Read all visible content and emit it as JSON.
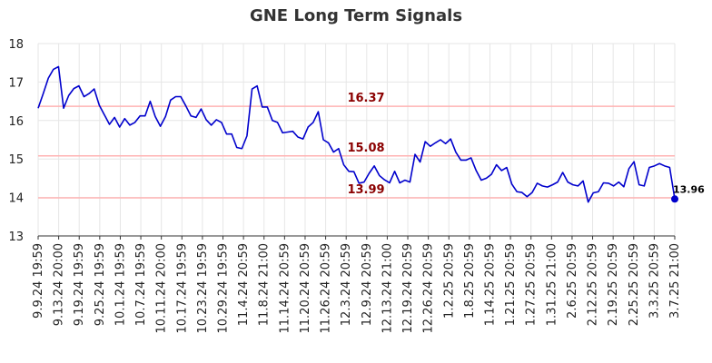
{
  "chart_data": {
    "type": "line",
    "title": "GNE Long Term Signals",
    "ylim": [
      13,
      18
    ],
    "yticks": [
      13,
      14,
      15,
      16,
      17,
      18
    ],
    "grid": true,
    "line_color": "#0000cc",
    "level_line_color": "#ffb3b3",
    "level_label_color": "#8b0000",
    "x_tick_labels": [
      "9.9.24 19:59",
      "9.13.24 20:00",
      "9.19.24 19:59",
      "9.25.24 19:59",
      "10.1.24 19:59",
      "10.7.24 19:59",
      "10.11.24 20:00",
      "10.17.24 19:59",
      "10.23.24 19:59",
      "10.29.24 19:59",
      "11.4.24 20:59",
      "11.8.24 21:00",
      "11.14.24 20:59",
      "11.20.24 20:59",
      "11.26.24 20:59",
      "12.3.24 20:59",
      "12.9.24 20:59",
      "12.13.24 21:00",
      "12.19.24 20:59",
      "12.26.24 20:59",
      "1.2.25 20:59",
      "1.8.25 20:59",
      "1.14.25 20:59",
      "1.21.25 20:59",
      "1.27.25 20:59",
      "1.31.25 21:00",
      "2.6.25 20:59",
      "2.12.25 20:59",
      "2.19.25 20:59",
      "2.25.25 20:59",
      "3.3.25 20:59",
      "3.7.25 21:00"
    ],
    "levels": [
      {
        "value": 16.37,
        "label": "16.37"
      },
      {
        "value": 15.08,
        "label": "15.08"
      },
      {
        "value": 13.99,
        "label": "13.99"
      }
    ],
    "last_value": 13.96,
    "last_label": "13.96",
    "series": [
      {
        "values": [
          16.32,
          16.7,
          17.1,
          17.33,
          17.4,
          16.32,
          16.65,
          16.83,
          16.9,
          16.62,
          16.7,
          16.82,
          16.4,
          16.15,
          15.9,
          16.08,
          15.83,
          16.05,
          15.88,
          15.95,
          16.12,
          16.12,
          16.5,
          16.1,
          15.85,
          16.1,
          16.53,
          16.62,
          16.62,
          16.38,
          16.12,
          16.08,
          16.3,
          16.02,
          15.88,
          16.02,
          15.95,
          15.65,
          15.65,
          15.3,
          15.27,
          15.6,
          16.82,
          16.9,
          16.35,
          16.35,
          16.0,
          15.95,
          15.68,
          15.7,
          15.72,
          15.57,
          15.52,
          15.83,
          15.95,
          16.23,
          15.5,
          15.42,
          15.18,
          15.27,
          14.85,
          14.68,
          14.67,
          14.37,
          14.4,
          14.63,
          14.82,
          14.57,
          14.46,
          14.38,
          14.68,
          14.38,
          14.45,
          14.4,
          15.12,
          14.92,
          15.45,
          15.33,
          15.42,
          15.5,
          15.4,
          15.52,
          15.18,
          14.97,
          14.97,
          15.03,
          14.7,
          14.45,
          14.5,
          14.6,
          14.85,
          14.7,
          14.78,
          14.35,
          14.15,
          14.13,
          14.02,
          14.13,
          14.37,
          14.3,
          14.27,
          14.33,
          14.4,
          14.65,
          14.4,
          14.33,
          14.3,
          14.43,
          13.88,
          14.12,
          14.15,
          14.38,
          14.37,
          14.3,
          14.4,
          14.28,
          14.75,
          14.93,
          14.33,
          14.3,
          14.78,
          14.82,
          14.88,
          14.82,
          14.78,
          13.96
        ]
      }
    ]
  }
}
